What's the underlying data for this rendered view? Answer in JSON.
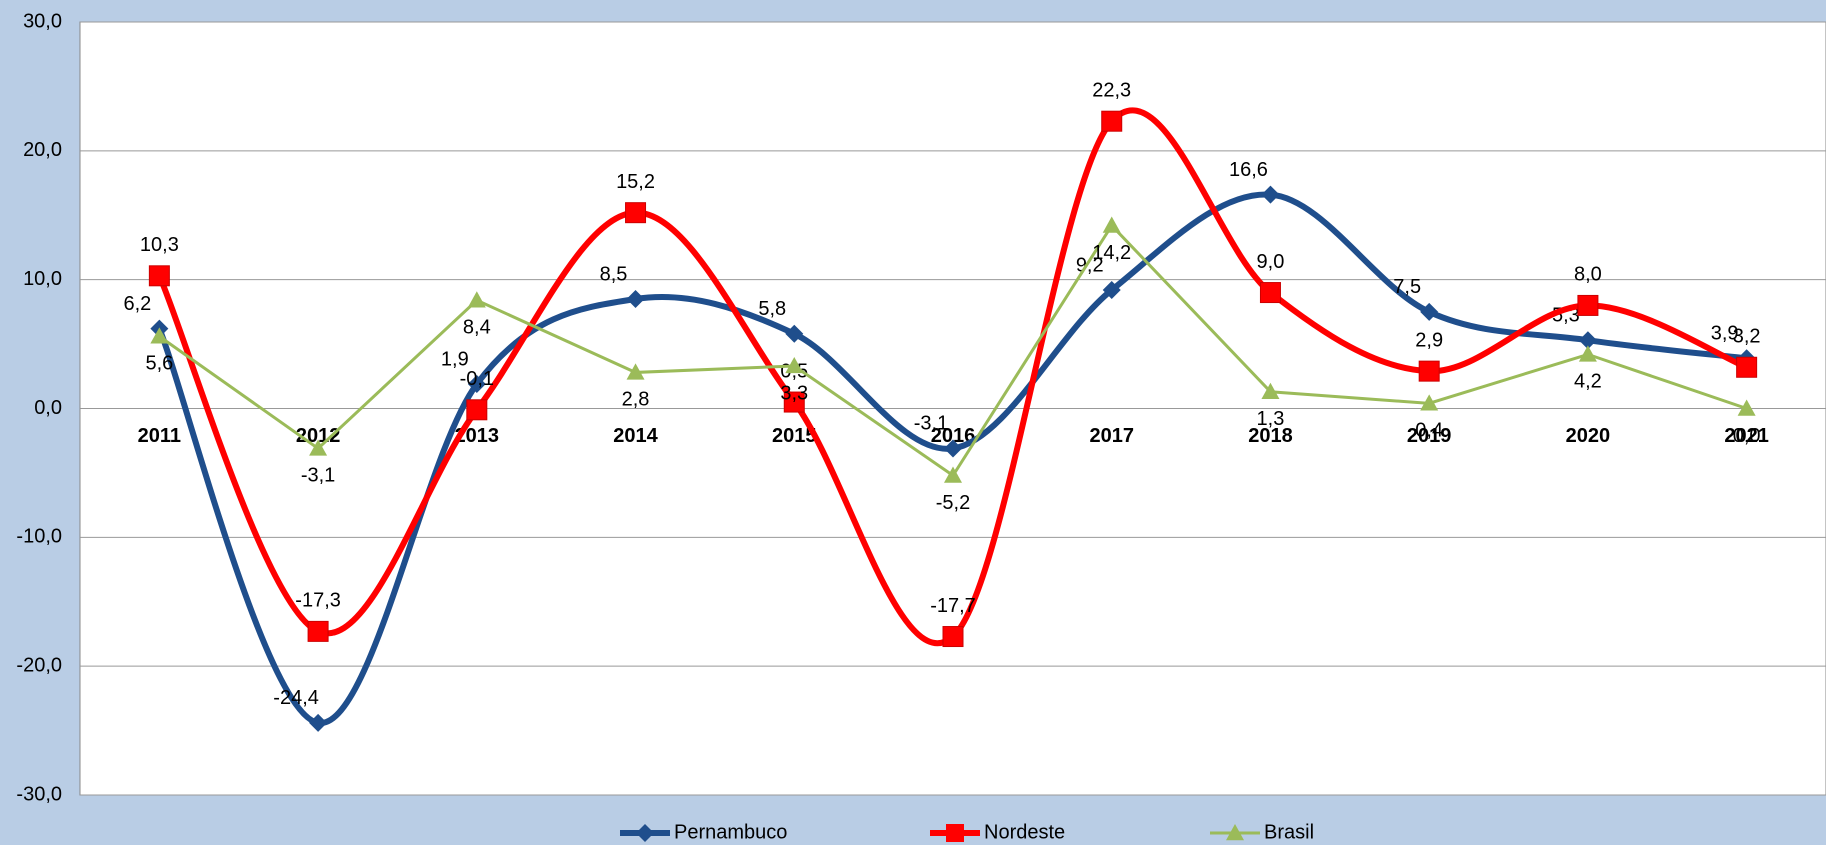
{
  "chart_data": {
    "type": "line",
    "categories": [
      "2011",
      "2012",
      "2013",
      "2014",
      "2015",
      "2016",
      "2017",
      "2018",
      "2019",
      "2020",
      "2021"
    ],
    "series": [
      {
        "name": "Pernambuco",
        "color": "#1f4e8c",
        "marker": "diamond",
        "smooth": true,
        "values": [
          6.2,
          -24.4,
          1.9,
          8.5,
          5.8,
          -3.1,
          9.2,
          16.6,
          7.5,
          5.3,
          3.9
        ],
        "value_labels": [
          "6,2",
          "-24,4",
          "1,9",
          "8,5",
          "5,8",
          "-3,1",
          "9,2",
          "16,6",
          "7,5",
          "5,3",
          "3,9"
        ]
      },
      {
        "name": "Nordeste",
        "color": "#ff0000",
        "marker": "square",
        "smooth": true,
        "values": [
          10.3,
          -17.3,
          -0.1,
          15.2,
          0.5,
          -17.7,
          22.3,
          9.0,
          2.9,
          8.0,
          3.2
        ],
        "value_labels": [
          "10,3",
          "-17,3",
          "-0,1",
          "15,2",
          "0,5",
          "-17,7",
          "22,3",
          "9,0",
          "2,9",
          "8,0",
          "3,2"
        ]
      },
      {
        "name": "Brasil",
        "color": "#9bbb59",
        "marker": "triangle",
        "smooth": false,
        "values": [
          5.6,
          -3.1,
          8.4,
          2.8,
          3.3,
          -5.2,
          14.2,
          1.3,
          0.4,
          4.2,
          0.0
        ],
        "value_labels": [
          "5,6",
          "-3,1",
          "8,4",
          "2,8",
          "3,3",
          "-5,2",
          "14,2",
          "1,3",
          "0,4",
          "4,2",
          "0,0"
        ]
      }
    ],
    "ylim": [
      -30,
      30
    ],
    "yticks": [
      {
        "value": -30,
        "label": "-30,0"
      },
      {
        "value": -20,
        "label": "-20,0"
      },
      {
        "value": -10,
        "label": "-10,0"
      },
      {
        "value": 0,
        "label": "0,0"
      },
      {
        "value": 10,
        "label": "10,0"
      },
      {
        "value": 20,
        "label": "20,0"
      },
      {
        "value": 30,
        "label": "30,0"
      }
    ],
    "grid": true,
    "legend": "bottom"
  }
}
